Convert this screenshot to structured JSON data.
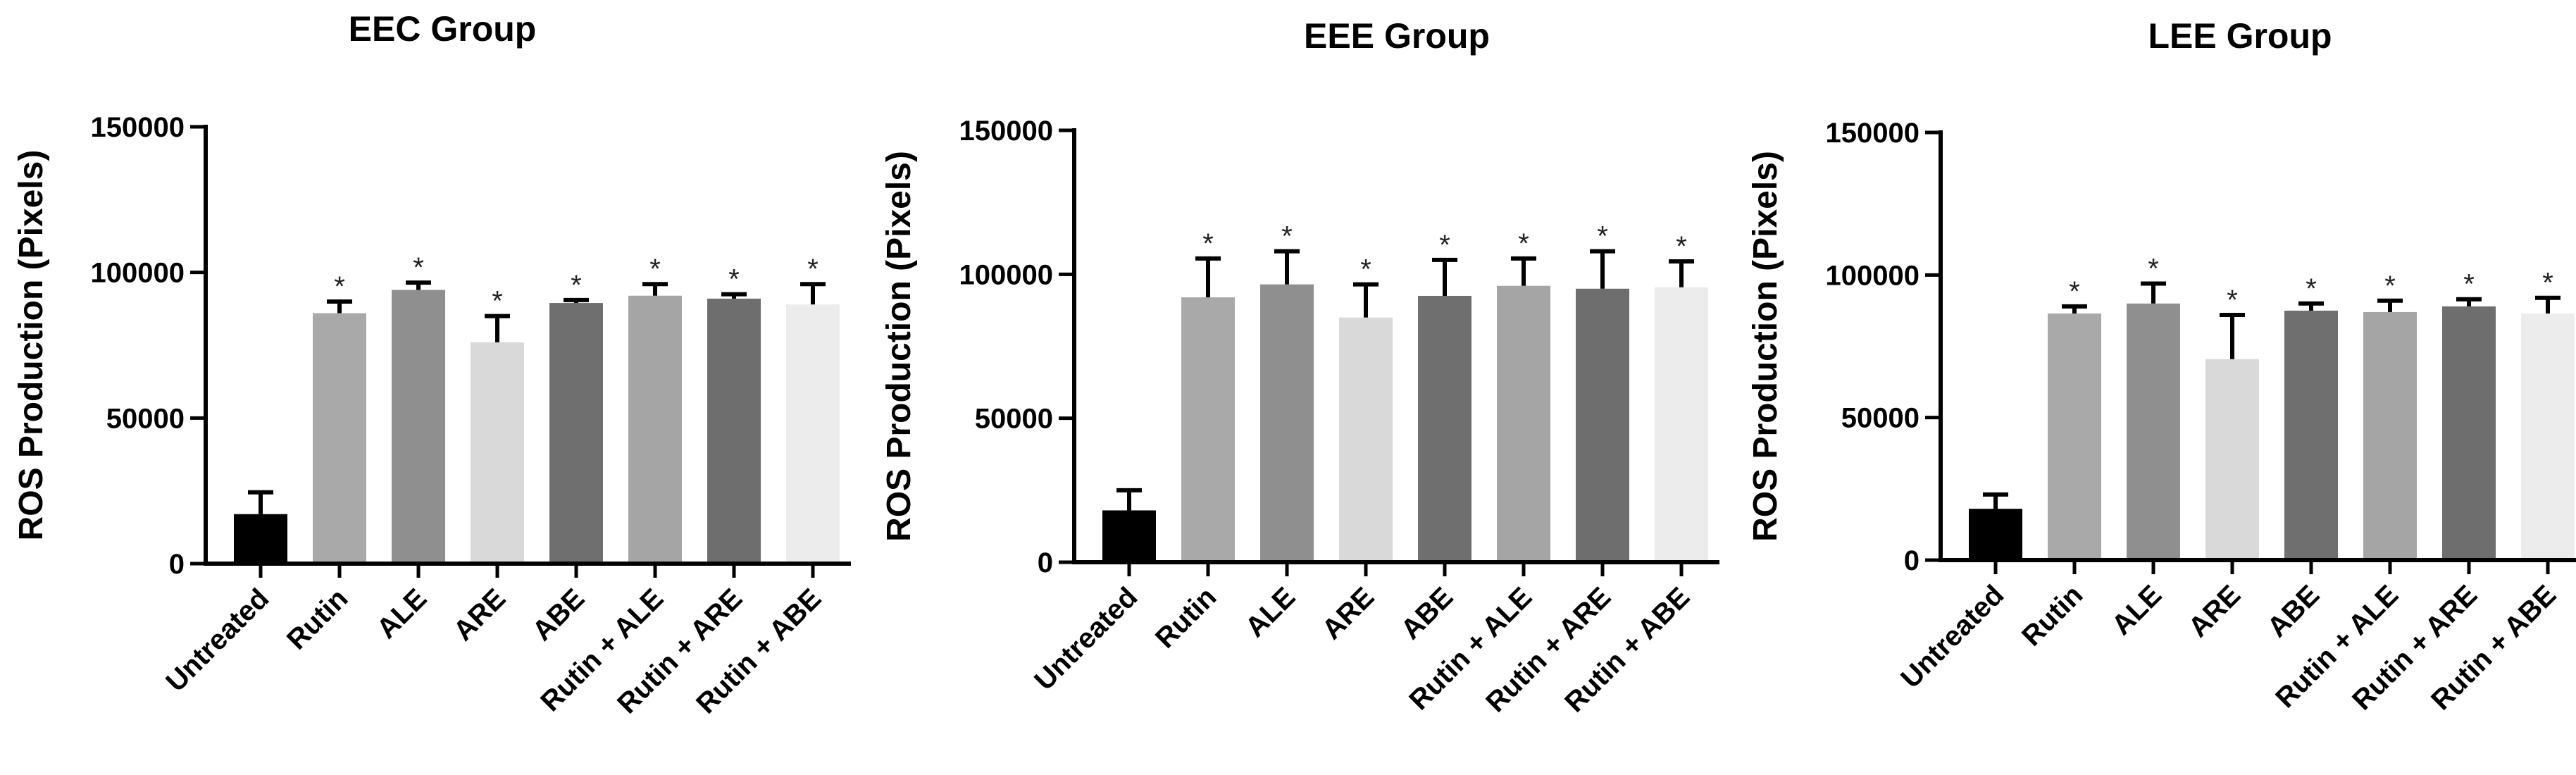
{
  "chart_data": [
    {
      "type": "bar",
      "title": "EEC Group",
      "xlabel": "",
      "ylabel": "ROS Production (Pixels)",
      "ylim": [
        0,
        150000
      ],
      "yticks": [
        0,
        50000,
        100000,
        150000
      ],
      "categories": [
        "Untreated",
        "Rutin",
        "ALE",
        "ARE",
        "ABE",
        "Rutin + ALE",
        "Rutin + ARE",
        "Rutin + ABE"
      ],
      "values": [
        17000,
        86000,
        94000,
        76000,
        89500,
        92000,
        91000,
        89000
      ],
      "errors": [
        7500,
        4000,
        2500,
        9000,
        1000,
        4000,
        1500,
        7000
      ],
      "significance": [
        "",
        "*",
        "*",
        "*",
        "*",
        "*",
        "*",
        "*"
      ],
      "bar_colors": [
        "#000000",
        "#a9a9a9",
        "#8f8f8f",
        "#d9d9d9",
        "#6f6f6f",
        "#a5a5a5",
        "#6e6e6e",
        "#ececec"
      ]
    },
    {
      "type": "bar",
      "title": "EEE Group",
      "xlabel": "",
      "ylabel": "ROS Production (Pixels)",
      "ylim": [
        0,
        150000
      ],
      "yticks": [
        0,
        50000,
        100000,
        150000
      ],
      "categories": [
        "Untreated",
        "Rutin",
        "ALE",
        "ARE",
        "ABE",
        "Rutin + ALE",
        "Rutin + ARE",
        "Rutin + ABE"
      ],
      "values": [
        18000,
        92000,
        96500,
        85000,
        92500,
        96000,
        95000,
        95500
      ],
      "errors": [
        7000,
        13500,
        11500,
        11500,
        12500,
        9500,
        13000,
        9000
      ],
      "significance": [
        "",
        "*",
        "*",
        "*",
        "*",
        "*",
        "*",
        "*"
      ],
      "bar_colors": [
        "#000000",
        "#a9a9a9",
        "#8f8f8f",
        "#d9d9d9",
        "#6f6f6f",
        "#a5a5a5",
        "#6e6e6e",
        "#ececec"
      ]
    },
    {
      "type": "bar",
      "title": "LEE Group",
      "xlabel": "",
      "ylabel": "ROS Production (Pixels)",
      "ylim": [
        0,
        150000
      ],
      "yticks": [
        0,
        50000,
        100000,
        150000
      ],
      "categories": [
        "Untreated",
        "Rutin",
        "ALE",
        "ARE",
        "ABE",
        "Rutin + ALE",
        "Rutin + ARE",
        "Rutin + ABE"
      ],
      "values": [
        18000,
        86500,
        90000,
        70500,
        87500,
        87000,
        89000,
        86500
      ],
      "errors": [
        5000,
        2500,
        7000,
        15500,
        2500,
        4000,
        2500,
        5500
      ],
      "significance": [
        "",
        "*",
        "*",
        "*",
        "*",
        "*",
        "*",
        "*"
      ],
      "bar_colors": [
        "#000000",
        "#a9a9a9",
        "#8f8f8f",
        "#d9d9d9",
        "#6f6f6f",
        "#a5a5a5",
        "#6e6e6e",
        "#ececec"
      ]
    }
  ]
}
